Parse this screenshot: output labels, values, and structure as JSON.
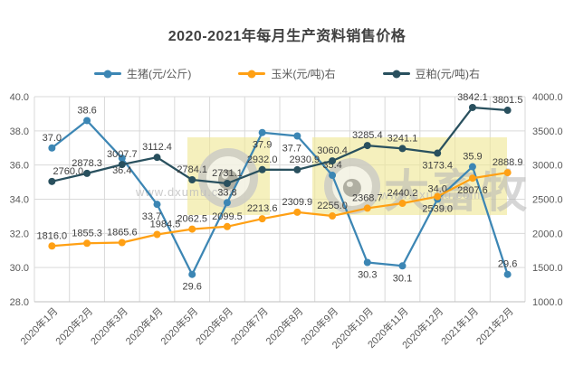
{
  "title": "2020-2021年每月生产资料销售价格",
  "watermark": {
    "brand": "大畜牧",
    "url": "www.dxumu.com",
    "highlight_color": "#efe795"
  },
  "chart_data": {
    "type": "line",
    "title": "2020-2021年每月生产资料销售价格",
    "grid": true,
    "legend_position": "top",
    "categories": [
      "2020年1月",
      "2020年2月",
      "2020年3月",
      "2020年4月",
      "2020年5月",
      "2020年6月",
      "2020年7月",
      "2020年8月",
      "2020年9月",
      "2020年10月",
      "2020年11月",
      "2020年12月",
      "2021年1月",
      "2021年2月"
    ],
    "series": [
      {
        "name": "生猪(元/公斤)",
        "axis": "left",
        "color": "#3C86B4",
        "values": [
          37.0,
          38.6,
          36.4,
          33.7,
          29.6,
          33.8,
          37.9,
          37.7,
          35.4,
          30.3,
          30.1,
          34.0,
          35.9,
          29.6
        ]
      },
      {
        "name": "玉米(元/吨)右",
        "axis": "right",
        "color": "#FFA014",
        "values": [
          1816.0,
          1855.3,
          1865.6,
          1984.5,
          2062.5,
          2099.5,
          2213.6,
          2309.9,
          2255.0,
          2368.7,
          2440.2,
          2539.0,
          2807.6,
          2888.9
        ]
      },
      {
        "name": "豆粕(元/吨)右",
        "axis": "right",
        "color": "#29505E",
        "values": [
          2760.0,
          2878.3,
          3007.7,
          3112.4,
          2784.1,
          2731.1,
          2932.0,
          2930.9,
          3060.4,
          3285.4,
          3241.1,
          3173.4,
          3842.1,
          3801.5
        ]
      }
    ],
    "left_axis": {
      "min": 28.0,
      "max": 40.0,
      "step": 2.0,
      "decimals": 1
    },
    "right_axis": {
      "min": 1000.0,
      "max": 4000.0,
      "step": 500.0,
      "decimals": 1
    }
  }
}
